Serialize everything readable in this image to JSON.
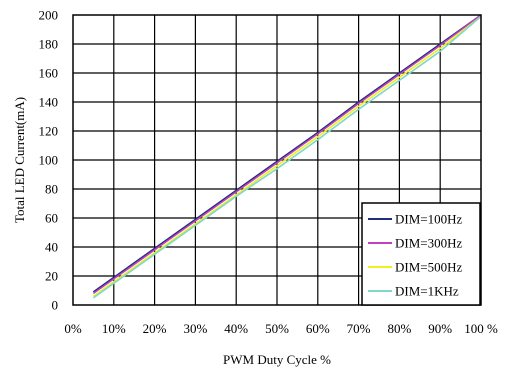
{
  "chart_data": {
    "type": "line",
    "title": "",
    "xlabel": "PWM Duty Cycle %",
    "ylabel": "Total LED Current(mA)",
    "xlim": [
      0,
      100
    ],
    "ylim": [
      0,
      200
    ],
    "x_ticks": [
      "0%",
      "10%",
      "20%",
      "30%",
      "40%",
      "50%",
      "60%",
      "70%",
      "80%",
      "90%",
      "100 %"
    ],
    "y_ticks": [
      "0",
      "20",
      "40",
      "60",
      "80",
      "100",
      "120",
      "140",
      "160",
      "180",
      "200"
    ],
    "grid": true,
    "legend_position": "bottom-right",
    "series": [
      {
        "name": "DIM=100Hz",
        "color": "#1f2f7a",
        "x": [
          5,
          10,
          20,
          30,
          40,
          50,
          60,
          70,
          80,
          90,
          100
        ],
        "y": [
          9,
          19,
          39,
          59,
          79,
          99,
          119,
          140,
          160,
          180,
          200
        ]
      },
      {
        "name": "DIM=300Hz",
        "color": "#c040c0",
        "x": [
          5,
          10,
          20,
          30,
          40,
          50,
          60,
          70,
          80,
          90,
          100
        ],
        "y": [
          8,
          18,
          38,
          58,
          78,
          98,
          118,
          139,
          159,
          179,
          200
        ]
      },
      {
        "name": "DIM=500Hz",
        "color": "#f0f020",
        "x": [
          5,
          10,
          20,
          30,
          40,
          50,
          60,
          70,
          80,
          90,
          100
        ],
        "y": [
          6,
          16,
          36,
          56,
          76,
          96,
          116,
          137,
          157,
          177,
          199
        ]
      },
      {
        "name": "DIM=1KHz",
        "color": "#7fd8c8",
        "x": [
          5,
          10,
          20,
          30,
          40,
          50,
          60,
          70,
          80,
          90,
          100
        ],
        "y": [
          5,
          15,
          35,
          55,
          75,
          94,
          114,
          135,
          155,
          175,
          199
        ]
      }
    ]
  }
}
